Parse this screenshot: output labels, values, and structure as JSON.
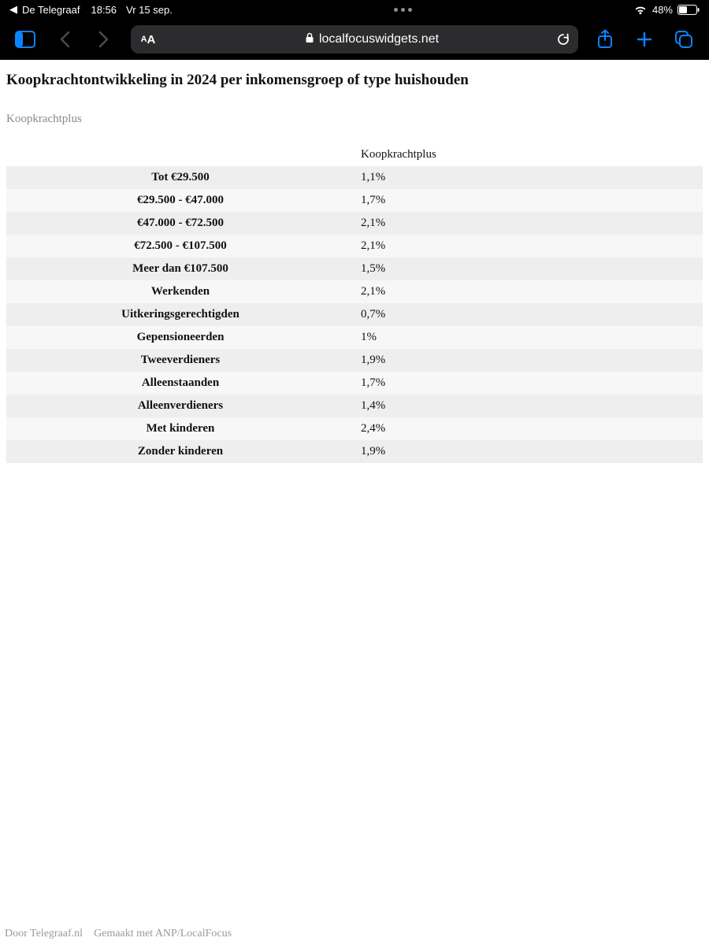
{
  "status": {
    "back_app": "De Telegraaf",
    "time": "18:56",
    "date": "Vr 15 sep.",
    "battery_pct": "48%"
  },
  "toolbar": {
    "aa_label": "AA",
    "url_host": "localfocuswidgets.net"
  },
  "page": {
    "title": "Koopkrachtontwikkeling in 2024 per inkomensgroep of type huishouden",
    "subtitle": "Koopkrachtplus",
    "table": {
      "column_header": "Koopkrachtplus",
      "rows": [
        {
          "label": "Tot €29.500",
          "value": "1,1%"
        },
        {
          "label": "€29.500 - €47.000",
          "value": "1,7%"
        },
        {
          "label": "€47.000 - €72.500",
          "value": "2,1%"
        },
        {
          "label": "€72.500 - €107.500",
          "value": "2,1%"
        },
        {
          "label": "Meer dan €107.500",
          "value": "1,5%"
        },
        {
          "label": "Werkenden",
          "value": "2,1%"
        },
        {
          "label": "Uitkeringsgerechtigden",
          "value": "0,7%"
        },
        {
          "label": "Gepensioneerden",
          "value": "1%"
        },
        {
          "label": "Tweeverdieners",
          "value": "1,9%"
        },
        {
          "label": "Alleenstaanden",
          "value": "1,7%"
        },
        {
          "label": "Alleenverdieners",
          "value": "1,4%"
        },
        {
          "label": "Met kinderen",
          "value": "2,4%"
        },
        {
          "label": "Zonder kinderen",
          "value": "1,9%"
        }
      ],
      "row_bg_odd": "#eeeeee",
      "row_bg_even": "#f7f7f7",
      "text_color": "#111111",
      "label_fontweight": 700,
      "fontsize": 15
    },
    "footer": {
      "left": "Door Telegraaf.nl",
      "right": "Gemaakt met ANP/LocalFocus"
    }
  },
  "colors": {
    "ios_blue": "#0a84ff",
    "toolbar_bg": "#000000",
    "addr_bg": "#2c2c2e",
    "disabled": "#4a4a4f",
    "page_bg": "#ffffff",
    "muted_text": "#8a8a8a",
    "footer_text": "#9a9a9a"
  }
}
